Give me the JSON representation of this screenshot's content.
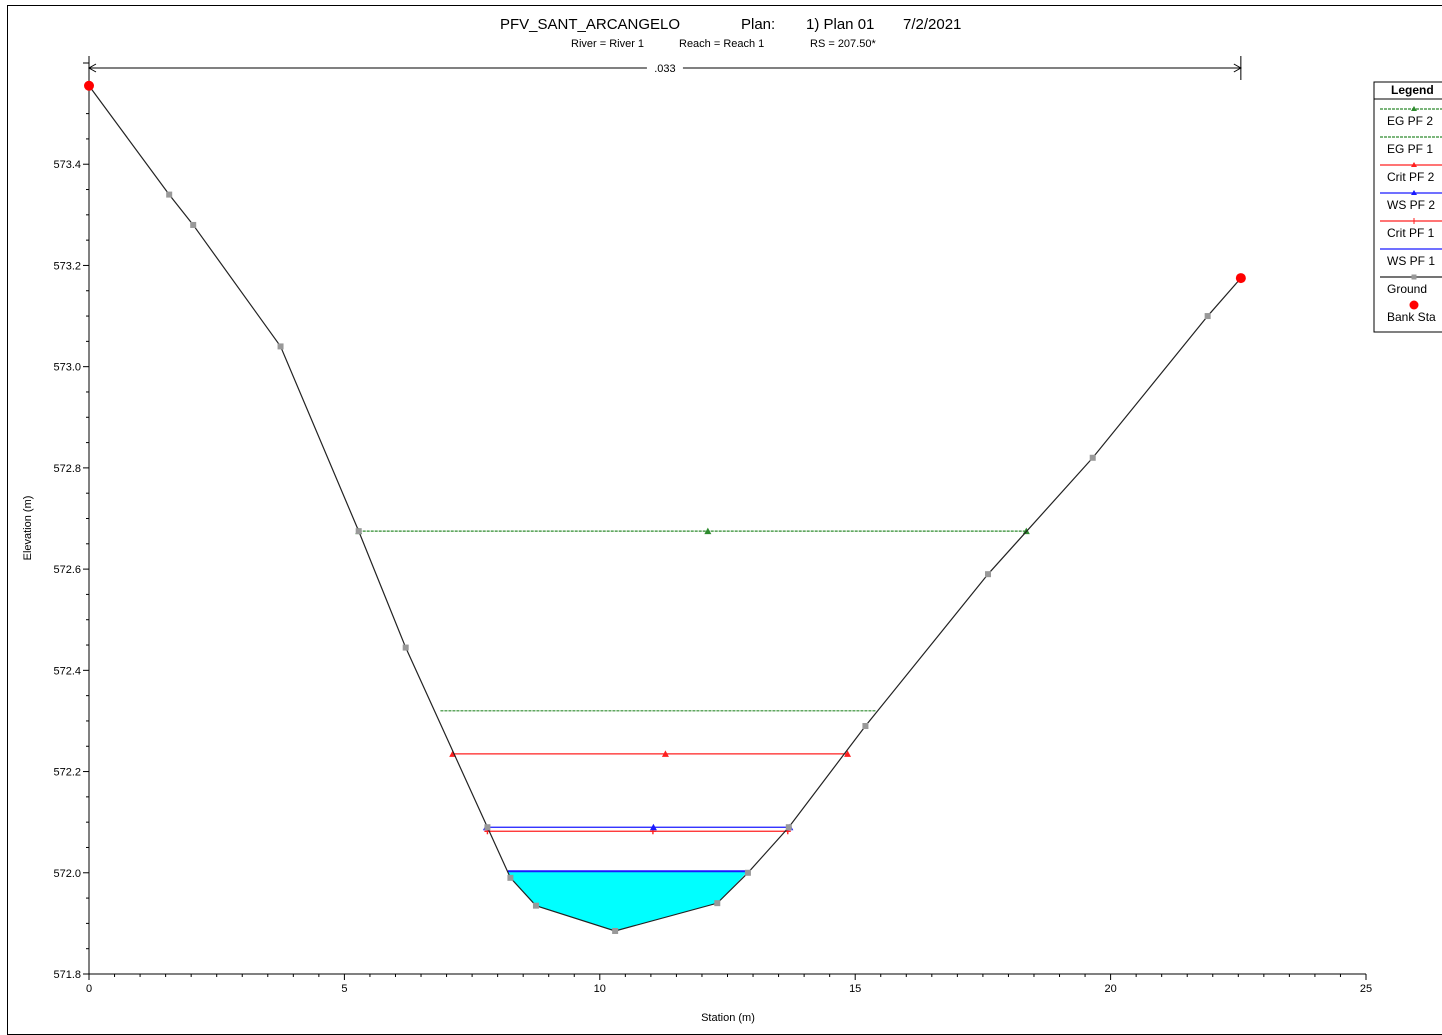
{
  "chart_data": {
    "type": "line",
    "title": {
      "project": "PFV_SANT_ARCANGELO",
      "plan_label": "Plan:",
      "plan_value": "1) Plan 01",
      "date": "7/2/2021"
    },
    "subtitle": {
      "river": "River = River 1",
      "reach": "Reach = Reach 1",
      "rs": "RS = 207.50*"
    },
    "xlabel": "Station (m)",
    "ylabel": "Elevation (m)",
    "xlim": [
      0,
      25
    ],
    "ylim": [
      571.8,
      573.6
    ],
    "xticks": [
      "0",
      "5",
      "10",
      "15",
      "20",
      "25"
    ],
    "xtick_values": [
      0,
      5,
      10,
      15,
      20,
      25
    ],
    "yticks": [
      "571.8",
      "572.0",
      "572.2",
      "572.4",
      "572.6",
      "572.8",
      "573.0",
      "573.2",
      "573.4"
    ],
    "ytick_values": [
      571.8,
      572.0,
      572.2,
      572.4,
      572.6,
      572.8,
      573.0,
      573.2,
      573.4
    ],
    "manning": {
      "label": ".033",
      "x_start": 0,
      "x_end": 22.55
    },
    "legend": {
      "title": "Legend",
      "entries": [
        "EG PF 2",
        "EG PF 1",
        "Crit PF 2",
        "WS PF 2",
        "Crit PF 1",
        "WS PF 1",
        "Ground",
        "Bank Sta"
      ],
      "placement": "right"
    },
    "colors": {
      "eg_pf2": "#2e8b2e",
      "eg_pf1": "#2e8b2e",
      "crit_pf2": "#ff2020",
      "ws_pf2": "#1a1aff",
      "crit_pf1": "#ff2020",
      "ws_pf1": "#1a1aff",
      "ground": "#222222",
      "ground_marker": "#999999",
      "bank": "#ff0000",
      "water_fill": "#00ffff"
    },
    "series": [
      {
        "name": "Ground",
        "x": [
          0,
          1.57,
          2.04,
          3.75,
          5.28,
          6.2,
          7.8,
          8.25,
          8.75,
          10.3,
          12.3,
          12.9,
          13.7,
          15.2,
          17.6,
          19.65,
          21.9,
          22.55
        ],
        "y": [
          573.555,
          573.34,
          573.28,
          573.04,
          572.675,
          572.445,
          572.09,
          571.99,
          571.935,
          571.885,
          571.94,
          572.0,
          572.09,
          572.29,
          572.59,
          572.82,
          573.1,
          573.175
        ]
      },
      {
        "name": "EG PF 2",
        "x_start": 5.28,
        "x_end": 18.35,
        "y": 572.675
      },
      {
        "name": "EG PF 1",
        "x_start": 6.88,
        "x_end": 15.4,
        "y": 572.32
      },
      {
        "name": "Crit PF 2",
        "x_start": 7.12,
        "x_end": 14.85,
        "y": 572.235
      },
      {
        "name": "WS PF 2",
        "x_start": 7.78,
        "x_end": 13.72,
        "y": 572.09
      },
      {
        "name": "Crit PF 1",
        "x_start": 7.8,
        "x_end": 13.68,
        "y": 572.082
      },
      {
        "name": "WS PF 1",
        "x_start": 8.2,
        "x_end": 12.9,
        "y": 572.003
      },
      {
        "name": "Bank Sta",
        "x": [
          0,
          22.55
        ],
        "y": [
          573.555,
          573.175
        ]
      }
    ]
  }
}
